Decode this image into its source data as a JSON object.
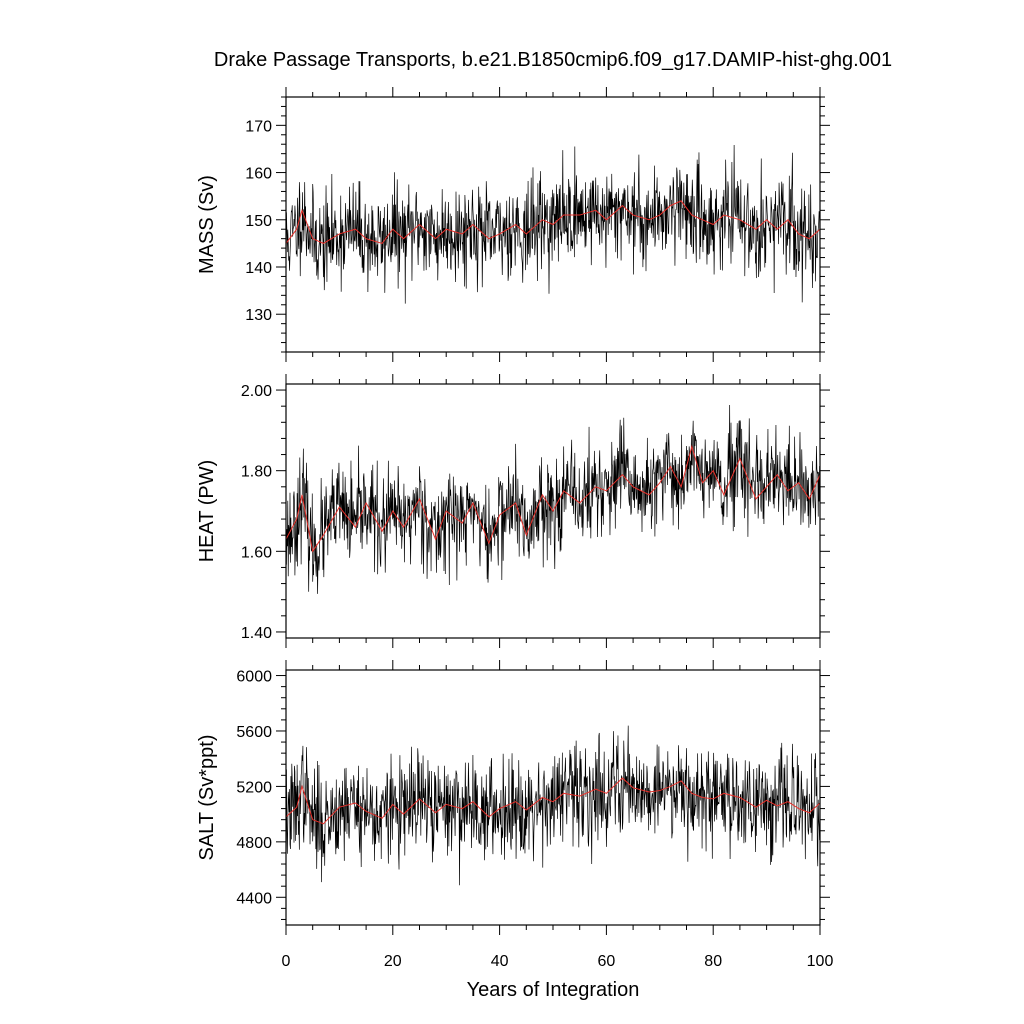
{
  "chart_data": {
    "type": "line",
    "title": "Drake Passage Transports, b.e21.B1850cmip6.f09_g17.DAMIP-hist-ghg.001",
    "xlabel": "Years of Integration",
    "xlim": [
      0,
      100
    ],
    "xticks": [
      0,
      20,
      40,
      60,
      80,
      100
    ],
    "x_tick_labels": [
      "0",
      "20",
      "40",
      "60",
      "80",
      "100"
    ],
    "series_style": {
      "monthly_color": "#000000",
      "smoothed_color": "#e8302a"
    },
    "panels": [
      {
        "ylabel": "MASS (Sv)",
        "ylim": [
          122,
          176
        ],
        "yticks": [
          130,
          140,
          150,
          160,
          170
        ],
        "y_tick_labels": [
          "130",
          "140",
          "150",
          "160",
          "170"
        ],
        "monthly": {
          "mean": 147.5,
          "amplitude": 10,
          "seed": 11
        },
        "smoothed": {
          "x": [
            0,
            2,
            3,
            5,
            7,
            10,
            13,
            15,
            18,
            20,
            22,
            25,
            28,
            30,
            33,
            35,
            38,
            40,
            43,
            45,
            48,
            50,
            52,
            55,
            58,
            60,
            63,
            65,
            68,
            70,
            72,
            74,
            76,
            78,
            80,
            82,
            85,
            88,
            90,
            92,
            94,
            96,
            98,
            100
          ],
          "values": [
            145,
            148,
            152,
            146,
            145,
            147,
            148,
            146,
            145,
            148,
            146,
            149,
            146,
            148,
            147,
            149,
            146,
            147,
            149,
            147,
            150,
            149,
            151,
            151,
            152,
            150,
            153,
            151,
            150,
            151,
            153,
            154,
            151,
            150,
            149,
            151,
            150,
            148,
            150,
            148,
            150,
            147,
            146,
            148
          ]
        }
      },
      {
        "ylabel": "HEAT (PW)",
        "ylim": [
          1.385,
          2.015
        ],
        "yticks": [
          1.4,
          1.6,
          1.8,
          2.0
        ],
        "y_tick_labels": [
          "1.40",
          "1.60",
          "1.80",
          "2.00"
        ],
        "monthly": {
          "mean": 1.7,
          "amplitude": 0.12,
          "seed": 23
        },
        "smoothed": {
          "x": [
            0,
            2,
            3,
            5,
            7,
            10,
            13,
            15,
            18,
            20,
            22,
            25,
            28,
            30,
            33,
            35,
            38,
            40,
            43,
            45,
            48,
            50,
            52,
            55,
            58,
            60,
            63,
            65,
            68,
            70,
            72,
            74,
            76,
            78,
            80,
            82,
            85,
            88,
            90,
            92,
            94,
            96,
            98,
            100
          ],
          "values": [
            1.63,
            1.68,
            1.74,
            1.6,
            1.64,
            1.71,
            1.66,
            1.72,
            1.65,
            1.7,
            1.66,
            1.73,
            1.63,
            1.7,
            1.67,
            1.72,
            1.62,
            1.69,
            1.72,
            1.64,
            1.74,
            1.7,
            1.75,
            1.72,
            1.76,
            1.75,
            1.79,
            1.76,
            1.74,
            1.77,
            1.81,
            1.76,
            1.86,
            1.77,
            1.8,
            1.74,
            1.83,
            1.73,
            1.76,
            1.79,
            1.75,
            1.77,
            1.73,
            1.79
          ]
        }
      },
      {
        "ylabel": "SALT (Sv*ppt)",
        "ylim": [
          4200,
          6040
        ],
        "yticks": [
          4400,
          4800,
          5200,
          5600,
          6000
        ],
        "y_tick_labels": [
          "4400",
          "4800",
          "5200",
          "5600",
          "6000"
        ],
        "monthly": {
          "mean": 5070,
          "amplitude": 360,
          "seed": 37
        },
        "smoothed": {
          "x": [
            0,
            2,
            3,
            5,
            7,
            10,
            13,
            15,
            18,
            20,
            22,
            25,
            28,
            30,
            33,
            35,
            38,
            40,
            43,
            45,
            48,
            50,
            52,
            55,
            58,
            60,
            63,
            65,
            68,
            70,
            72,
            74,
            76,
            78,
            80,
            82,
            85,
            88,
            90,
            92,
            94,
            96,
            98,
            100
          ],
          "values": [
            4980,
            5050,
            5200,
            4960,
            4930,
            5050,
            5080,
            5020,
            4970,
            5070,
            5000,
            5110,
            5010,
            5070,
            5040,
            5090,
            4980,
            5040,
            5090,
            5030,
            5120,
            5090,
            5150,
            5130,
            5180,
            5150,
            5260,
            5190,
            5160,
            5170,
            5200,
            5240,
            5150,
            5120,
            5110,
            5150,
            5120,
            5050,
            5100,
            5060,
            5090,
            5040,
            5010,
            5080
          ]
        }
      }
    ]
  }
}
